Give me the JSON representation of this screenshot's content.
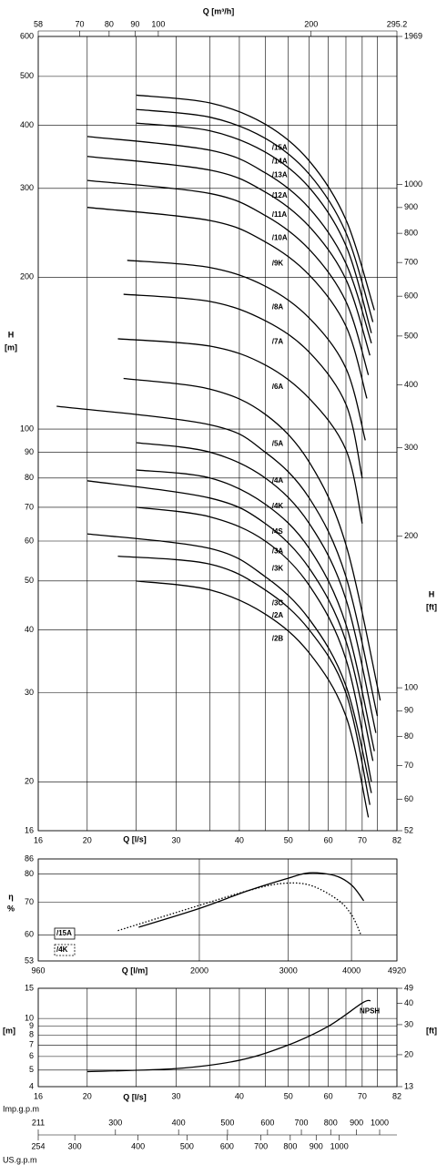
{
  "chart_data": [
    {
      "type": "line",
      "xscale": "log",
      "yscale": "log",
      "grid": true,
      "color": "#000000",
      "xlabel": "Q [l/s]",
      "xlim": [
        16,
        82
      ],
      "xticks": [
        16,
        20,
        30,
        40,
        50,
        60,
        70,
        82
      ],
      "xgrid": [
        25,
        35,
        45,
        55,
        65,
        75
      ],
      "x2label": "Q [m³/h]",
      "x2lim": [
        58,
        295.2
      ],
      "x2ticks": [
        58,
        70,
        80,
        90,
        100,
        200,
        295.2
      ],
      "ylabel": "H",
      "yunit": "[m]",
      "ylim": [
        16,
        600
      ],
      "yticks": [
        16,
        20,
        30,
        40,
        50,
        60,
        70,
        80,
        90,
        100,
        200,
        300,
        400,
        500,
        600
      ],
      "y2label": "H",
      "y2unit": "[ft]",
      "y2lim": [
        52,
        1969
      ],
      "y2ticks": [
        52,
        60,
        70,
        80,
        90,
        100,
        200,
        300,
        400,
        500,
        600,
        700,
        800,
        900,
        1000,
        1969
      ],
      "series": [
        {
          "name": "/15A",
          "x": [
            25,
            35,
            45,
            55,
            65,
            74
          ],
          "values": [
            459,
            443,
            402,
            340,
            260,
            172
          ]
        },
        {
          "name": "/14A",
          "x": [
            25,
            35,
            45,
            55,
            65,
            73.5
          ],
          "values": [
            430,
            415,
            377,
            320,
            245,
            163
          ]
        },
        {
          "name": "/13A",
          "x": [
            25,
            35,
            45,
            55,
            65,
            73
          ],
          "values": [
            404,
            390,
            354,
            301,
            231,
            155
          ]
        },
        {
          "name": "/12A",
          "x": [
            20,
            35,
            45,
            55,
            65,
            73
          ],
          "values": [
            380,
            357,
            322,
            274,
            213,
            148
          ]
        },
        {
          "name": "/11A",
          "x": [
            20,
            35,
            45,
            55,
            65,
            72.5
          ],
          "values": [
            347,
            326,
            295,
            252,
            198,
            140
          ]
        },
        {
          "name": "/10A",
          "x": [
            20,
            35,
            45,
            55,
            65,
            72
          ],
          "values": [
            311,
            293,
            265,
            227,
            179,
            128
          ]
        },
        {
          "name": "/9K",
          "x": [
            20,
            35,
            45,
            55,
            65,
            71.5
          ],
          "values": [
            275,
            259,
            235,
            202,
            160,
            115
          ]
        },
        {
          "name": "/8A",
          "x": [
            24,
            35,
            45,
            55,
            65,
            71
          ],
          "values": [
            216,
            209,
            192,
            166,
            132,
            95
          ]
        },
        {
          "name": "/7A",
          "x": [
            23.6,
            35,
            45,
            55,
            65,
            70
          ],
          "values": [
            185,
            179,
            164,
            142,
            112,
            80
          ]
        },
        {
          "name": "/6A",
          "x": [
            23,
            35,
            45,
            55,
            65,
            70
          ],
          "values": [
            151,
            146,
            134,
            115,
            91,
            65
          ]
        },
        {
          "name": "/5A",
          "x": [
            23.6,
            35,
            45,
            55,
            65,
            76
          ],
          "values": [
            126,
            120,
            107,
            86,
            59,
            29
          ]
        },
        {
          "name": "/4A",
          "x": [
            17.4,
            35,
            45,
            55,
            65,
            75
          ],
          "values": [
            111,
            102,
            90,
            73,
            51,
            27
          ]
        },
        {
          "name": "/4K",
          "x": [
            25,
            35,
            45,
            55,
            65,
            74.5
          ],
          "values": [
            94,
            90,
            80,
            65,
            46,
            25
          ]
        },
        {
          "name": "/4S",
          "x": [
            25,
            35,
            45,
            55,
            65,
            74
          ],
          "values": [
            83,
            80,
            71,
            58,
            41,
            23
          ]
        },
        {
          "name": "/3A",
          "x": [
            20,
            35,
            45,
            55,
            65,
            73.5
          ],
          "values": [
            79,
            73,
            65,
            53,
            38,
            22
          ]
        },
        {
          "name": "/3K",
          "x": [
            25,
            35,
            45,
            55,
            65,
            73
          ],
          "values": [
            70,
            67,
            60,
            49,
            35,
            20
          ]
        },
        {
          "name": "/3C",
          "x": [
            20,
            35,
            45,
            55,
            65,
            73
          ],
          "values": [
            62,
            58,
            51,
            42,
            31,
            19
          ]
        },
        {
          "name": "/2A",
          "x": [
            23,
            35,
            45,
            55,
            65,
            72.5
          ],
          "values": [
            56,
            54,
            48,
            40,
            30,
            18
          ]
        },
        {
          "name": "/2B",
          "x": [
            25,
            35,
            45,
            55,
            65,
            72
          ],
          "values": [
            50,
            48,
            43,
            36,
            27,
            17
          ]
        }
      ]
    },
    {
      "type": "line",
      "xscale": "log",
      "yscale": "log",
      "grid": true,
      "color": "#000000",
      "xlabel": "Q [l/m]",
      "xlim": [
        960,
        4920
      ],
      "xticks": [
        960,
        2000,
        3000,
        4000,
        4920
      ],
      "ylabel": "η",
      "yunit": "%",
      "ylim": [
        53,
        86
      ],
      "yticks": [
        53,
        60,
        70,
        80,
        86
      ],
      "series": [
        {
          "name": "/15A",
          "style": "solid",
          "x": [
            1517,
            2000,
            2500,
            3000,
            3300,
            3700,
            4000,
            4230
          ],
          "values": [
            62.2,
            68,
            74,
            78.5,
            80.5,
            79.5,
            76,
            70.5
          ]
        },
        {
          "name": "/4K",
          "style": "dotted",
          "x": [
            1380,
            2000,
            2500,
            2900,
            3300,
            3745,
            4000,
            4176
          ],
          "values": [
            61.2,
            69,
            74,
            76.5,
            76,
            71,
            66,
            60
          ]
        }
      ]
    },
    {
      "type": "line",
      "xscale": "log",
      "yscale": "log",
      "grid": true,
      "color": "#000000",
      "xlabel": "Q [l/s]",
      "xlim": [
        16,
        82
      ],
      "xticks": [
        16,
        20,
        30,
        40,
        50,
        60,
        70,
        82
      ],
      "xgrid": [
        25,
        35,
        45,
        55,
        65,
        75
      ],
      "yunit": "[m]",
      "ylim": [
        4,
        15
      ],
      "yticks": [
        4,
        5,
        6,
        7,
        8,
        9,
        10,
        15
      ],
      "y2unit": "[ft]",
      "y2lim": [
        13,
        49
      ],
      "y2ticks": [
        13,
        20,
        30,
        40,
        49
      ],
      "series": [
        {
          "name": "NPSH",
          "x": [
            20,
            30,
            40,
            50,
            60,
            70,
            72.7
          ],
          "values": [
            4.9,
            5.1,
            5.7,
            7.0,
            9.0,
            12.3,
            12.7
          ]
        }
      ]
    },
    {
      "type": "scale",
      "xscale": "log",
      "scales": [
        {
          "label": "Imp.g.p.m",
          "lim": [
            211,
            1082
          ],
          "ticks": [
            211,
            300,
            400,
            500,
            600,
            700,
            800,
            900,
            1000
          ]
        },
        {
          "label": "US.g.p.m",
          "lim": [
            254,
            1300
          ],
          "ticks": [
            254,
            300,
            400,
            500,
            600,
            700,
            800,
            900,
            1000
          ]
        }
      ]
    }
  ]
}
